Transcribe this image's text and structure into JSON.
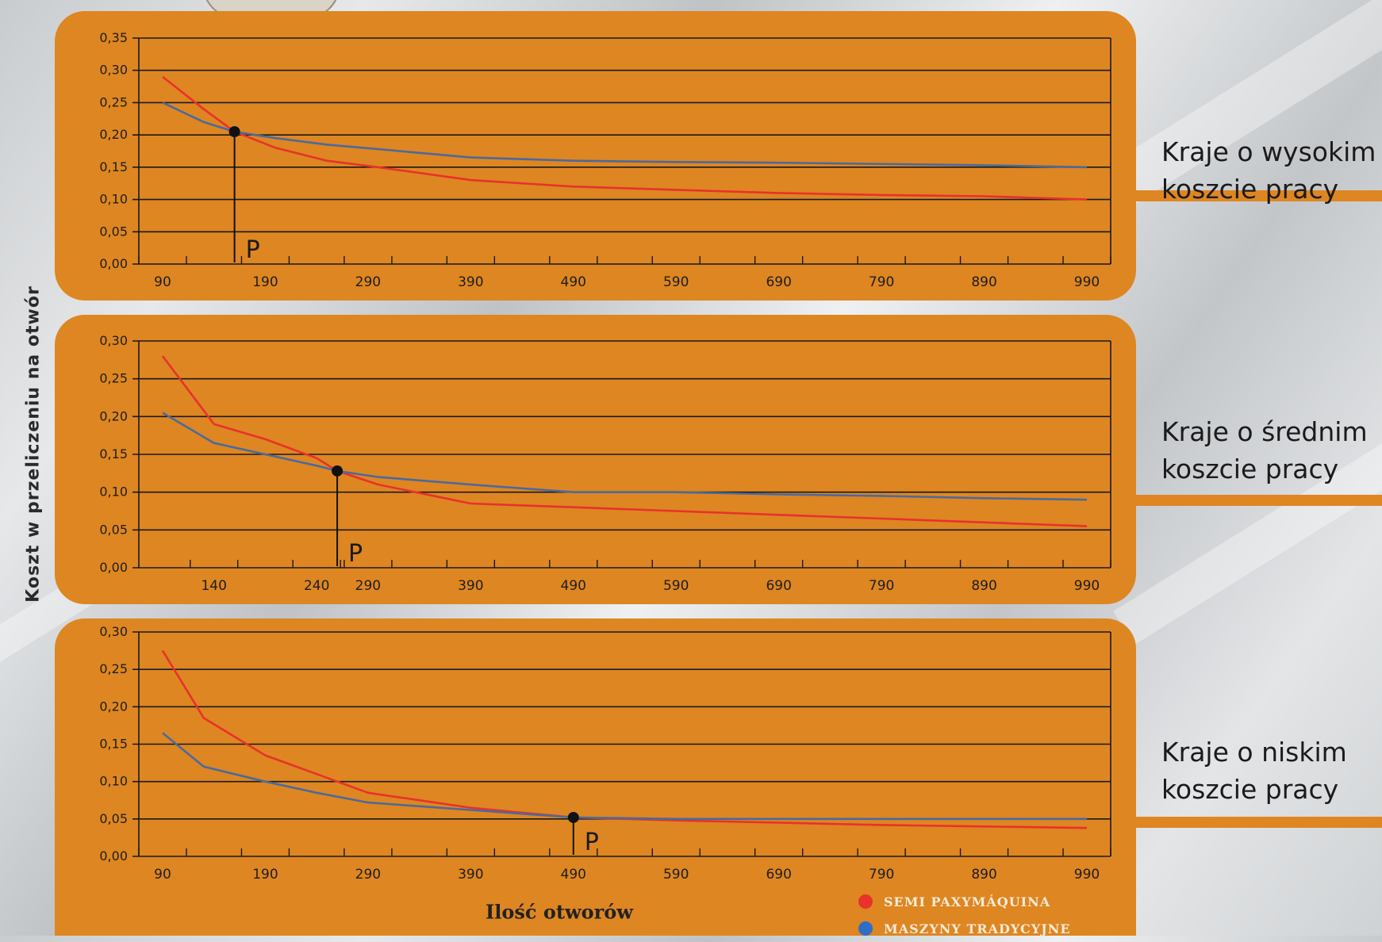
{
  "colors": {
    "panel": "#de8622",
    "grid": "#1a1a1a",
    "semi_line": "#e8322b",
    "trad_line": "#4b6a9c",
    "point": "#111111",
    "legend_text": "#f6ecd8"
  },
  "y_axis_title": "Koszt w przeliczeniu na otwór",
  "x_axis_title": "Ilość otworów",
  "legend": [
    {
      "label": "SEMI PAXYMÁQUINA",
      "color": "#e8322b"
    },
    {
      "label": "MASZYNY TRADYCYJNE",
      "color": "#2f6ec6"
    }
  ],
  "side_labels": [
    "Kraje o wysokim\nkoszcie pracy",
    "Kraje o średnim\nkoszcie pracy",
    "Kraje o niskim\nkoszcie pracy"
  ],
  "chart_data": [
    {
      "type": "line",
      "title": "",
      "ylim": [
        0,
        0.35
      ],
      "xlim": [
        90,
        990
      ],
      "yticks": [
        "0,00",
        "0,05",
        "0,10",
        "0,15",
        "0,20",
        "0,25",
        "0,30",
        "0,35"
      ],
      "xticks": [
        90,
        190,
        290,
        390,
        490,
        590,
        690,
        790,
        890,
        990
      ],
      "marker_label": "P",
      "breakeven": {
        "x": 160,
        "y": 0.205
      },
      "series": [
        {
          "name": "SEMI PAXYMÁQUINA",
          "color_key": "semi_line",
          "x": [
            90,
            130,
            160,
            200,
            250,
            300,
            390,
            490,
            590,
            690,
            790,
            890,
            990
          ],
          "y": [
            0.29,
            0.24,
            0.205,
            0.18,
            0.16,
            0.15,
            0.13,
            0.12,
            0.115,
            0.11,
            0.107,
            0.105,
            0.1
          ]
        },
        {
          "name": "MASZYNY TRADYCYJNE",
          "color_key": "trad_line",
          "x": [
            90,
            130,
            160,
            200,
            250,
            300,
            390,
            490,
            590,
            690,
            790,
            890,
            990
          ],
          "y": [
            0.25,
            0.22,
            0.205,
            0.195,
            0.185,
            0.178,
            0.165,
            0.16,
            0.158,
            0.157,
            0.155,
            0.153,
            0.15
          ]
        }
      ]
    },
    {
      "type": "line",
      "title": "",
      "ylim": [
        0,
        0.3
      ],
      "xlim": [
        90,
        990
      ],
      "yticks": [
        "0,00",
        "0,05",
        "0,10",
        "0,15",
        "0,20",
        "0,25",
        "0,30"
      ],
      "xticks": [
        140,
        240,
        290,
        390,
        490,
        590,
        690,
        790,
        890,
        990
      ],
      "marker_label": "P",
      "breakeven": {
        "x": 260,
        "y": 0.128
      },
      "series": [
        {
          "name": "SEMI PAXYMÁQUINA",
          "color_key": "semi_line",
          "x": [
            90,
            140,
            190,
            240,
            260,
            300,
            390,
            490,
            590,
            690,
            790,
            890,
            990
          ],
          "y": [
            0.28,
            0.19,
            0.17,
            0.145,
            0.128,
            0.11,
            0.085,
            0.08,
            0.075,
            0.07,
            0.065,
            0.06,
            0.055
          ]
        },
        {
          "name": "MASZYNY TRADYCYJNE",
          "color_key": "trad_line",
          "x": [
            90,
            140,
            190,
            240,
            260,
            300,
            390,
            490,
            590,
            690,
            790,
            890,
            990
          ],
          "y": [
            0.205,
            0.165,
            0.15,
            0.135,
            0.128,
            0.12,
            0.11,
            0.1,
            0.1,
            0.097,
            0.095,
            0.092,
            0.09
          ]
        }
      ]
    },
    {
      "type": "line",
      "title": "",
      "ylim": [
        0,
        0.3
      ],
      "xlim": [
        90,
        990
      ],
      "yticks": [
        "0,00",
        "0,05",
        "0,10",
        "0,15",
        "0,20",
        "0,25",
        "0,30"
      ],
      "xticks": [
        90,
        190,
        290,
        390,
        490,
        590,
        690,
        790,
        890,
        990
      ],
      "marker_label": "P",
      "breakeven": {
        "x": 490,
        "y": 0.052
      },
      "series": [
        {
          "name": "SEMI PAXYMÁQUINA",
          "color_key": "semi_line",
          "x": [
            90,
            130,
            190,
            240,
            290,
            390,
            490,
            590,
            690,
            790,
            890,
            990
          ],
          "y": [
            0.275,
            0.185,
            0.135,
            0.11,
            0.085,
            0.065,
            0.052,
            0.048,
            0.045,
            0.042,
            0.04,
            0.038
          ]
        },
        {
          "name": "MASZYNY TRADYCYJNE",
          "color_key": "trad_line",
          "x": [
            90,
            130,
            190,
            240,
            290,
            390,
            490,
            590,
            690,
            790,
            890,
            990
          ],
          "y": [
            0.165,
            0.12,
            0.1,
            0.085,
            0.072,
            0.062,
            0.052,
            0.05,
            0.05,
            0.05,
            0.05,
            0.05
          ]
        }
      ]
    }
  ]
}
